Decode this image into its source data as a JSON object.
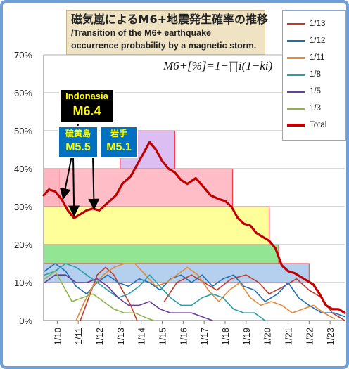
{
  "title": {
    "jp": "磁気嵐によるM6+地震発生確率の推移",
    "en_line1": "/Transition of the M6+ earthquake",
    "en_line2": "occurrence probability by a magnetic storm."
  },
  "formula": "M6+[%]=1−∏i(1−ki)",
  "callouts": {
    "indonesia": {
      "label": "Indonasia",
      "magnitude": "M6.4"
    },
    "iwo": {
      "label": "硫黄島",
      "magnitude": "M5.5"
    },
    "iate": {
      "label": "岩手",
      "magnitude": "M5.1"
    }
  },
  "chart_data": {
    "type": "line",
    "ylim": [
      0,
      70
    ],
    "y_ticks": [
      "0%",
      "10%",
      "20%",
      "30%",
      "40%",
      "50%",
      "60%",
      "70%"
    ],
    "x_tick_labels": [
      "1/10",
      "1/11",
      "1/12",
      "1/13",
      "1/14",
      "1/15",
      "1/16",
      "1/17",
      "1/18",
      "1/19",
      "1/20",
      "1/21",
      "1/22",
      "1/23"
    ],
    "x_range": [
      9.35,
      23.7
    ],
    "grid": true,
    "legend": "top-right",
    "bands": [
      {
        "x0": 9.35,
        "x1": 10.1,
        "y0": 30,
        "y1": 40,
        "fill": "#ffb3bd",
        "stroke": "#ff2a3b"
      },
      {
        "x0": 9.35,
        "x1": 18.35,
        "y0": 30,
        "y1": 40,
        "fill": "#ffb3bd",
        "stroke": "#ff2a3b"
      },
      {
        "x0": 13.0,
        "x1": 15.6,
        "y0": 40,
        "y1": 50,
        "fill": "#d6b3f0",
        "stroke": "#ff2a3b"
      },
      {
        "x0": 9.35,
        "x1": 20.1,
        "y0": 20,
        "y1": 30,
        "fill": "#ffff88",
        "stroke": "#ff2a3b"
      },
      {
        "x0": 9.35,
        "x1": 20.55,
        "y0": 15,
        "y1": 20,
        "fill": "#7fe07f",
        "stroke": "#ff2a3b"
      },
      {
        "x0": 9.35,
        "x1": 22.0,
        "y0": 10,
        "y1": 15,
        "fill": "#a8c8ec",
        "stroke": "#ff2a3b"
      }
    ],
    "series": [
      {
        "name": "1/13",
        "color": "#c0392b",
        "width": 1.6,
        "segments": [
          [
            [
              11.1,
              0
            ],
            [
              11.5,
              6
            ],
            [
              11.9,
              12
            ],
            [
              12.3,
              14
            ],
            [
              12.7,
              12
            ],
            [
              13.1,
              8
            ],
            [
              13.5,
              4
            ],
            [
              13.8,
              0
            ]
          ],
          [
            [
              15.1,
              5
            ],
            [
              15.7,
              10
            ],
            [
              16.4,
              12
            ],
            [
              17.0,
              10
            ],
            [
              17.6,
              8
            ],
            [
              18.3,
              11
            ],
            [
              19.0,
              12
            ],
            [
              19.6,
              10
            ],
            [
              20.1,
              7
            ],
            [
              20.8,
              9
            ],
            [
              21.4,
              11
            ],
            [
              22.0,
              8
            ],
            [
              22.6,
              6
            ],
            [
              23.1,
              2
            ],
            [
              23.7,
              0
            ]
          ]
        ]
      },
      {
        "name": "1/12",
        "color": "#1f6fb5",
        "width": 1.6,
        "segments": [
          [
            [
              9.4,
              13
            ],
            [
              9.9,
              15
            ],
            [
              10.4,
              13
            ],
            [
              10.9,
              9
            ],
            [
              11.4,
              7
            ],
            [
              11.9,
              10
            ],
            [
              12.4,
              12
            ],
            [
              12.9,
              10
            ],
            [
              13.4,
              9
            ],
            [
              13.9,
              11
            ],
            [
              14.4,
              10
            ],
            [
              14.9,
              8
            ],
            [
              15.4,
              11
            ],
            [
              15.9,
              12
            ],
            [
              16.4,
              10
            ],
            [
              16.9,
              12
            ],
            [
              17.4,
              9
            ],
            [
              17.9,
              11
            ],
            [
              18.4,
              12
            ],
            [
              18.9,
              9
            ],
            [
              19.4,
              8
            ],
            [
              19.9,
              5
            ],
            [
              20.5,
              7
            ],
            [
              21.0,
              10
            ],
            [
              21.5,
              6
            ],
            [
              22.0,
              4
            ],
            [
              22.6,
              2
            ],
            [
              23.2,
              2
            ],
            [
              23.7,
              1
            ]
          ]
        ]
      },
      {
        "name": "1/11",
        "color": "#e38b3a",
        "width": 1.6,
        "segments": [
          [
            [
              10.9,
              0
            ],
            [
              11.3,
              5
            ],
            [
              11.7,
              9
            ],
            [
              12.2,
              12
            ],
            [
              12.7,
              14
            ],
            [
              13.2,
              15
            ],
            [
              13.7,
              15
            ],
            [
              14.2,
              12
            ],
            [
              14.7,
              9
            ],
            [
              15.2,
              10
            ],
            [
              15.7,
              12
            ],
            [
              16.2,
              14
            ],
            [
              16.7,
              12
            ],
            [
              17.2,
              8
            ],
            [
              17.7,
              5
            ],
            [
              18.2,
              8
            ],
            [
              18.7,
              10
            ],
            [
              19.2,
              6
            ],
            [
              19.7,
              4
            ],
            [
              20.2,
              5
            ],
            [
              20.7,
              4
            ],
            [
              21.2,
              2
            ],
            [
              21.7,
              3
            ],
            [
              22.2,
              4
            ],
            [
              22.7,
              2
            ],
            [
              23.2,
              0.5
            ]
          ]
        ]
      },
      {
        "name": "1/8",
        "color": "#2aa0a6",
        "width": 1.6,
        "segments": [
          [
            [
              9.4,
              12
            ],
            [
              9.9,
              13
            ],
            [
              10.4,
              15
            ],
            [
              10.9,
              14
            ],
            [
              11.4,
              12
            ],
            [
              11.9,
              10
            ],
            [
              12.4,
              8
            ],
            [
              12.9,
              6
            ],
            [
              13.4,
              7
            ],
            [
              13.9,
              9
            ],
            [
              14.4,
              12
            ],
            [
              14.9,
              9
            ],
            [
              15.4,
              6
            ],
            [
              15.9,
              4
            ],
            [
              16.4,
              4
            ],
            [
              16.9,
              6
            ],
            [
              17.4,
              7
            ],
            [
              17.9,
              6
            ],
            [
              18.4,
              3
            ],
            [
              18.9,
              2
            ],
            [
              19.4,
              2
            ],
            [
              19.9,
              0
            ]
          ]
        ]
      },
      {
        "name": "1/5",
        "color": "#6a3d9a",
        "width": 1.6,
        "segments": [
          [
            [
              9.4,
              10
            ],
            [
              9.9,
              12
            ],
            [
              10.4,
              12
            ],
            [
              10.9,
              10
            ],
            [
              11.4,
              10
            ],
            [
              11.9,
              11
            ],
            [
              12.4,
              9
            ],
            [
              12.9,
              6
            ],
            [
              13.4,
              4
            ],
            [
              13.9,
              4
            ],
            [
              14.4,
              5
            ],
            [
              14.9,
              3
            ],
            [
              15.4,
              2
            ],
            [
              15.9,
              2
            ],
            [
              16.4,
              2
            ],
            [
              16.9,
              1
            ],
            [
              17.4,
              0
            ]
          ]
        ]
      },
      {
        "name": "1/3",
        "color": "#8bb54b",
        "width": 1.6,
        "segments": [
          [
            [
              9.4,
              11
            ],
            [
              9.9,
              13
            ],
            [
              10.3,
              9
            ],
            [
              10.7,
              5
            ],
            [
              11.2,
              6
            ],
            [
              11.7,
              7
            ],
            [
              12.2,
              5
            ],
            [
              12.7,
              3
            ],
            [
              13.2,
              2
            ],
            [
              13.7,
              2
            ],
            [
              14.2,
              0.8
            ],
            [
              14.6,
              0
            ]
          ]
        ]
      },
      {
        "name": "Total",
        "color": "#c00000",
        "width": 3.2,
        "segments": [
          [
            [
              9.35,
              33
            ],
            [
              9.6,
              34.5
            ],
            [
              9.9,
              34
            ],
            [
              10.2,
              32
            ],
            [
              10.5,
              29
            ],
            [
              10.8,
              27
            ],
            [
              11.1,
              28
            ],
            [
              11.4,
              29
            ],
            [
              11.7,
              29.5
            ],
            [
              12.0,
              29
            ],
            [
              12.4,
              31
            ],
            [
              12.8,
              33
            ],
            [
              13.1,
              36
            ],
            [
              13.5,
              38
            ],
            [
              13.8,
              41
            ],
            [
              14.1,
              44
            ],
            [
              14.4,
              47
            ],
            [
              14.7,
              45
            ],
            [
              15.0,
              42
            ],
            [
              15.3,
              40
            ],
            [
              15.6,
              39
            ],
            [
              15.9,
              37
            ],
            [
              16.2,
              36
            ],
            [
              16.6,
              37.5
            ],
            [
              17.0,
              35
            ],
            [
              17.3,
              33
            ],
            [
              17.7,
              32
            ],
            [
              18.0,
              31.5
            ],
            [
              18.3,
              30
            ],
            [
              18.6,
              27
            ],
            [
              18.9,
              25.5
            ],
            [
              19.2,
              25
            ],
            [
              19.5,
              23
            ],
            [
              19.8,
              22
            ],
            [
              20.1,
              21
            ],
            [
              20.4,
              19
            ],
            [
              20.7,
              14.5
            ],
            [
              21.0,
              13
            ],
            [
              21.3,
              12.5
            ],
            [
              21.6,
              11.5
            ],
            [
              21.9,
              10.5
            ],
            [
              22.2,
              9.5
            ],
            [
              22.5,
              7
            ],
            [
              22.8,
              4
            ],
            [
              23.1,
              3
            ],
            [
              23.4,
              3
            ],
            [
              23.7,
              2
            ]
          ]
        ]
      }
    ]
  }
}
